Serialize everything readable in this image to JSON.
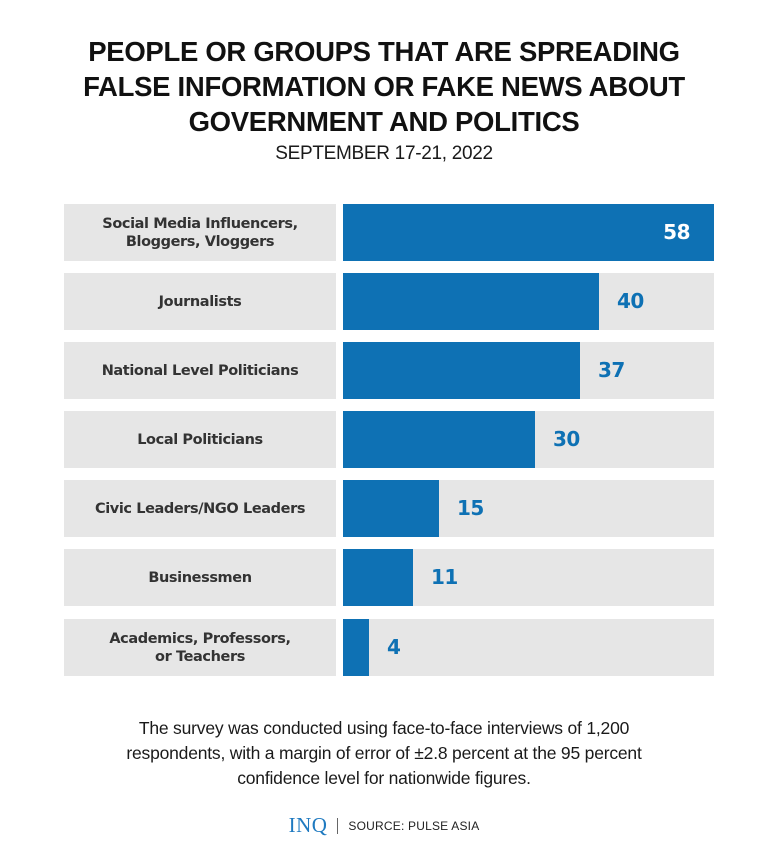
{
  "title_lines": [
    "PEOPLE OR GROUPS THAT ARE SPREADING",
    "FALSE INFORMATION OR FAKE NEWS ABOUT",
    "GOVERNMENT AND POLITICS"
  ],
  "subtitle": "SEPTEMBER 17-21, 2022",
  "colors": {
    "bar": "#0e71b4",
    "track": "#e6e6e6",
    "label_bg": "#e6e6e6",
    "logo": "#1f7ac0"
  },
  "chart_data": {
    "type": "bar",
    "orientation": "horizontal",
    "title": "PEOPLE OR GROUPS THAT ARE SPREADING FALSE INFORMATION OR FAKE NEWS ABOUT GOVERNMENT AND POLITICS",
    "subtitle": "SEPTEMBER 17-21, 2022",
    "categories": [
      "Social Media Influencers, Bloggers, Vloggers",
      "Journalists",
      "National Level Politicians",
      "Local Politicians",
      "Civic Leaders/NGO Leaders",
      "Businessmen",
      "Academics, Professors, or Teachers"
    ],
    "values": [
      58,
      40,
      37,
      30,
      15,
      11,
      4
    ],
    "xlabel": "",
    "ylabel": "",
    "xlim": [
      0,
      58
    ],
    "grid": false,
    "legend": "none",
    "data_labels": true
  },
  "rows": [
    {
      "label_lines": [
        "Social Media Influencers,",
        "Bloggers, Vloggers"
      ],
      "value": "58"
    },
    {
      "label_lines": [
        "Journalists"
      ],
      "value": "40"
    },
    {
      "label_lines": [
        "National Level Politicians"
      ],
      "value": "37"
    },
    {
      "label_lines": [
        "Local Politicians"
      ],
      "value": "30"
    },
    {
      "label_lines": [
        "Civic Leaders/NGO Leaders"
      ],
      "value": "15"
    },
    {
      "label_lines": [
        "Businessmen"
      ],
      "value": "11"
    },
    {
      "label_lines": [
        "Academics, Professors,",
        "or Teachers"
      ],
      "value": "4"
    }
  ],
  "note_lines": [
    "The survey was conducted using face-to-face interviews of 1,200",
    "respondents, with a margin of error of ±2.8 percent at the 95 percent",
    "confidence level for nationwide figures."
  ],
  "footer": {
    "logo": "INQ",
    "source": "SOURCE: PULSE ASIA"
  }
}
